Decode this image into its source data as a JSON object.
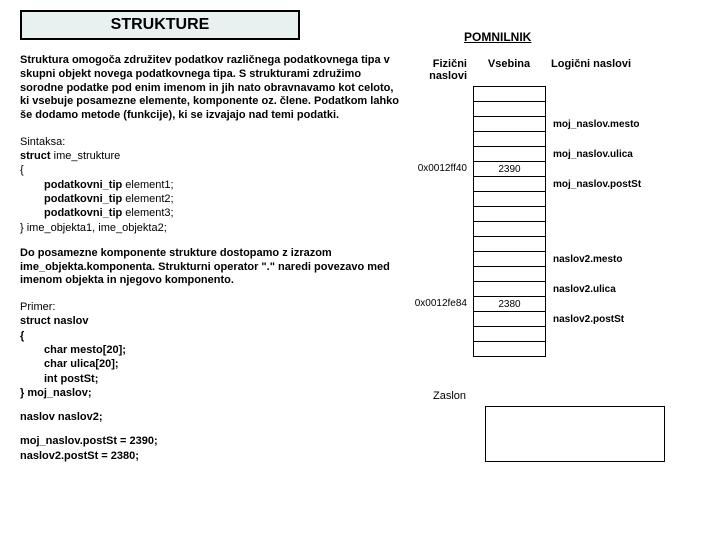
{
  "title": "STRUKTURE",
  "pomnilnik": "POMNILNIK",
  "headers": {
    "fiz": "Fizični naslovi",
    "vseb": "Vsebina",
    "log": "Logični naslovi"
  },
  "para1": "Struktura omogoča združitev podatkov različnega podatkovnega tipa v skupni objekt novega podatkovnega tipa. S strukturami združimo sorodne podatke pod enim imenom in jih nato obravnavamo kot celoto, ki vsebuje posamezne elemente, komponente oz. člene. Podatkom lahko še dodamo metode (funkcije), ki se izvajajo nad temi podatki.",
  "sintaksa": {
    "label": "Sintaksa:",
    "l1a": "struct ",
    "l1b": "ime_strukture",
    "open": "{",
    "l2a": "podatkovni_tip ",
    "l2b": "element1;",
    "l3a": "podatkovni_tip ",
    "l3b": "element2;",
    "l4a": "podatkovni_tip ",
    "l4b": "element3;",
    "closea": "} ",
    "closeb": "ime_objekta1, ime_objekta2;"
  },
  "para2": "Do posamezne komponente strukture dostopamo z izrazom ime_objekta.komponenta. Strukturni operator \".\" naredi povezavo med imenom objekta in njegovo komponento.",
  "primer": {
    "label": "Primer:",
    "l1": "struct naslov",
    "open": "{",
    "l2": "char mesto[20];",
    "l3": "char ulica[20];",
    "l4": "int postSt;",
    "close": "} moj_naslov;",
    "extra": "naslov naslov2;",
    "a1": "moj_naslov.postSt = 2390;",
    "a2": "naslov2.postSt = 2380;"
  },
  "memrows": [
    {
      "addr": "",
      "val": "",
      "log": ""
    },
    {
      "addr": "",
      "val": "",
      "log": "moj_naslov.mesto"
    },
    {
      "addr": "",
      "val": "",
      "log": ""
    },
    {
      "addr": "",
      "val": "",
      "log": "moj_naslov.ulica"
    },
    {
      "addr": "",
      "val": "",
      "log": ""
    },
    {
      "addr": "0x0012ff40",
      "val": "2390",
      "log": "moj_naslov.postSt"
    },
    {
      "addr": "",
      "val": "",
      "log": ""
    },
    {
      "addr": "",
      "val": "",
      "log": ""
    },
    {
      "addr": "",
      "val": "",
      "log": ""
    },
    {
      "addr": "",
      "val": "",
      "log": ""
    },
    {
      "addr": "",
      "val": "",
      "log": "naslov2.mesto"
    },
    {
      "addr": "",
      "val": "",
      "log": ""
    },
    {
      "addr": "",
      "val": "",
      "log": "naslov2.ulica"
    },
    {
      "addr": "",
      "val": "",
      "log": ""
    },
    {
      "addr": "0x0012fe84",
      "val": "2380",
      "log": "naslov2.postSt"
    },
    {
      "addr": "",
      "val": "",
      "log": ""
    },
    {
      "addr": "",
      "val": "",
      "log": ""
    },
    {
      "addr": "",
      "val": "",
      "log": ""
    }
  ],
  "zaslon": "Zaslon"
}
